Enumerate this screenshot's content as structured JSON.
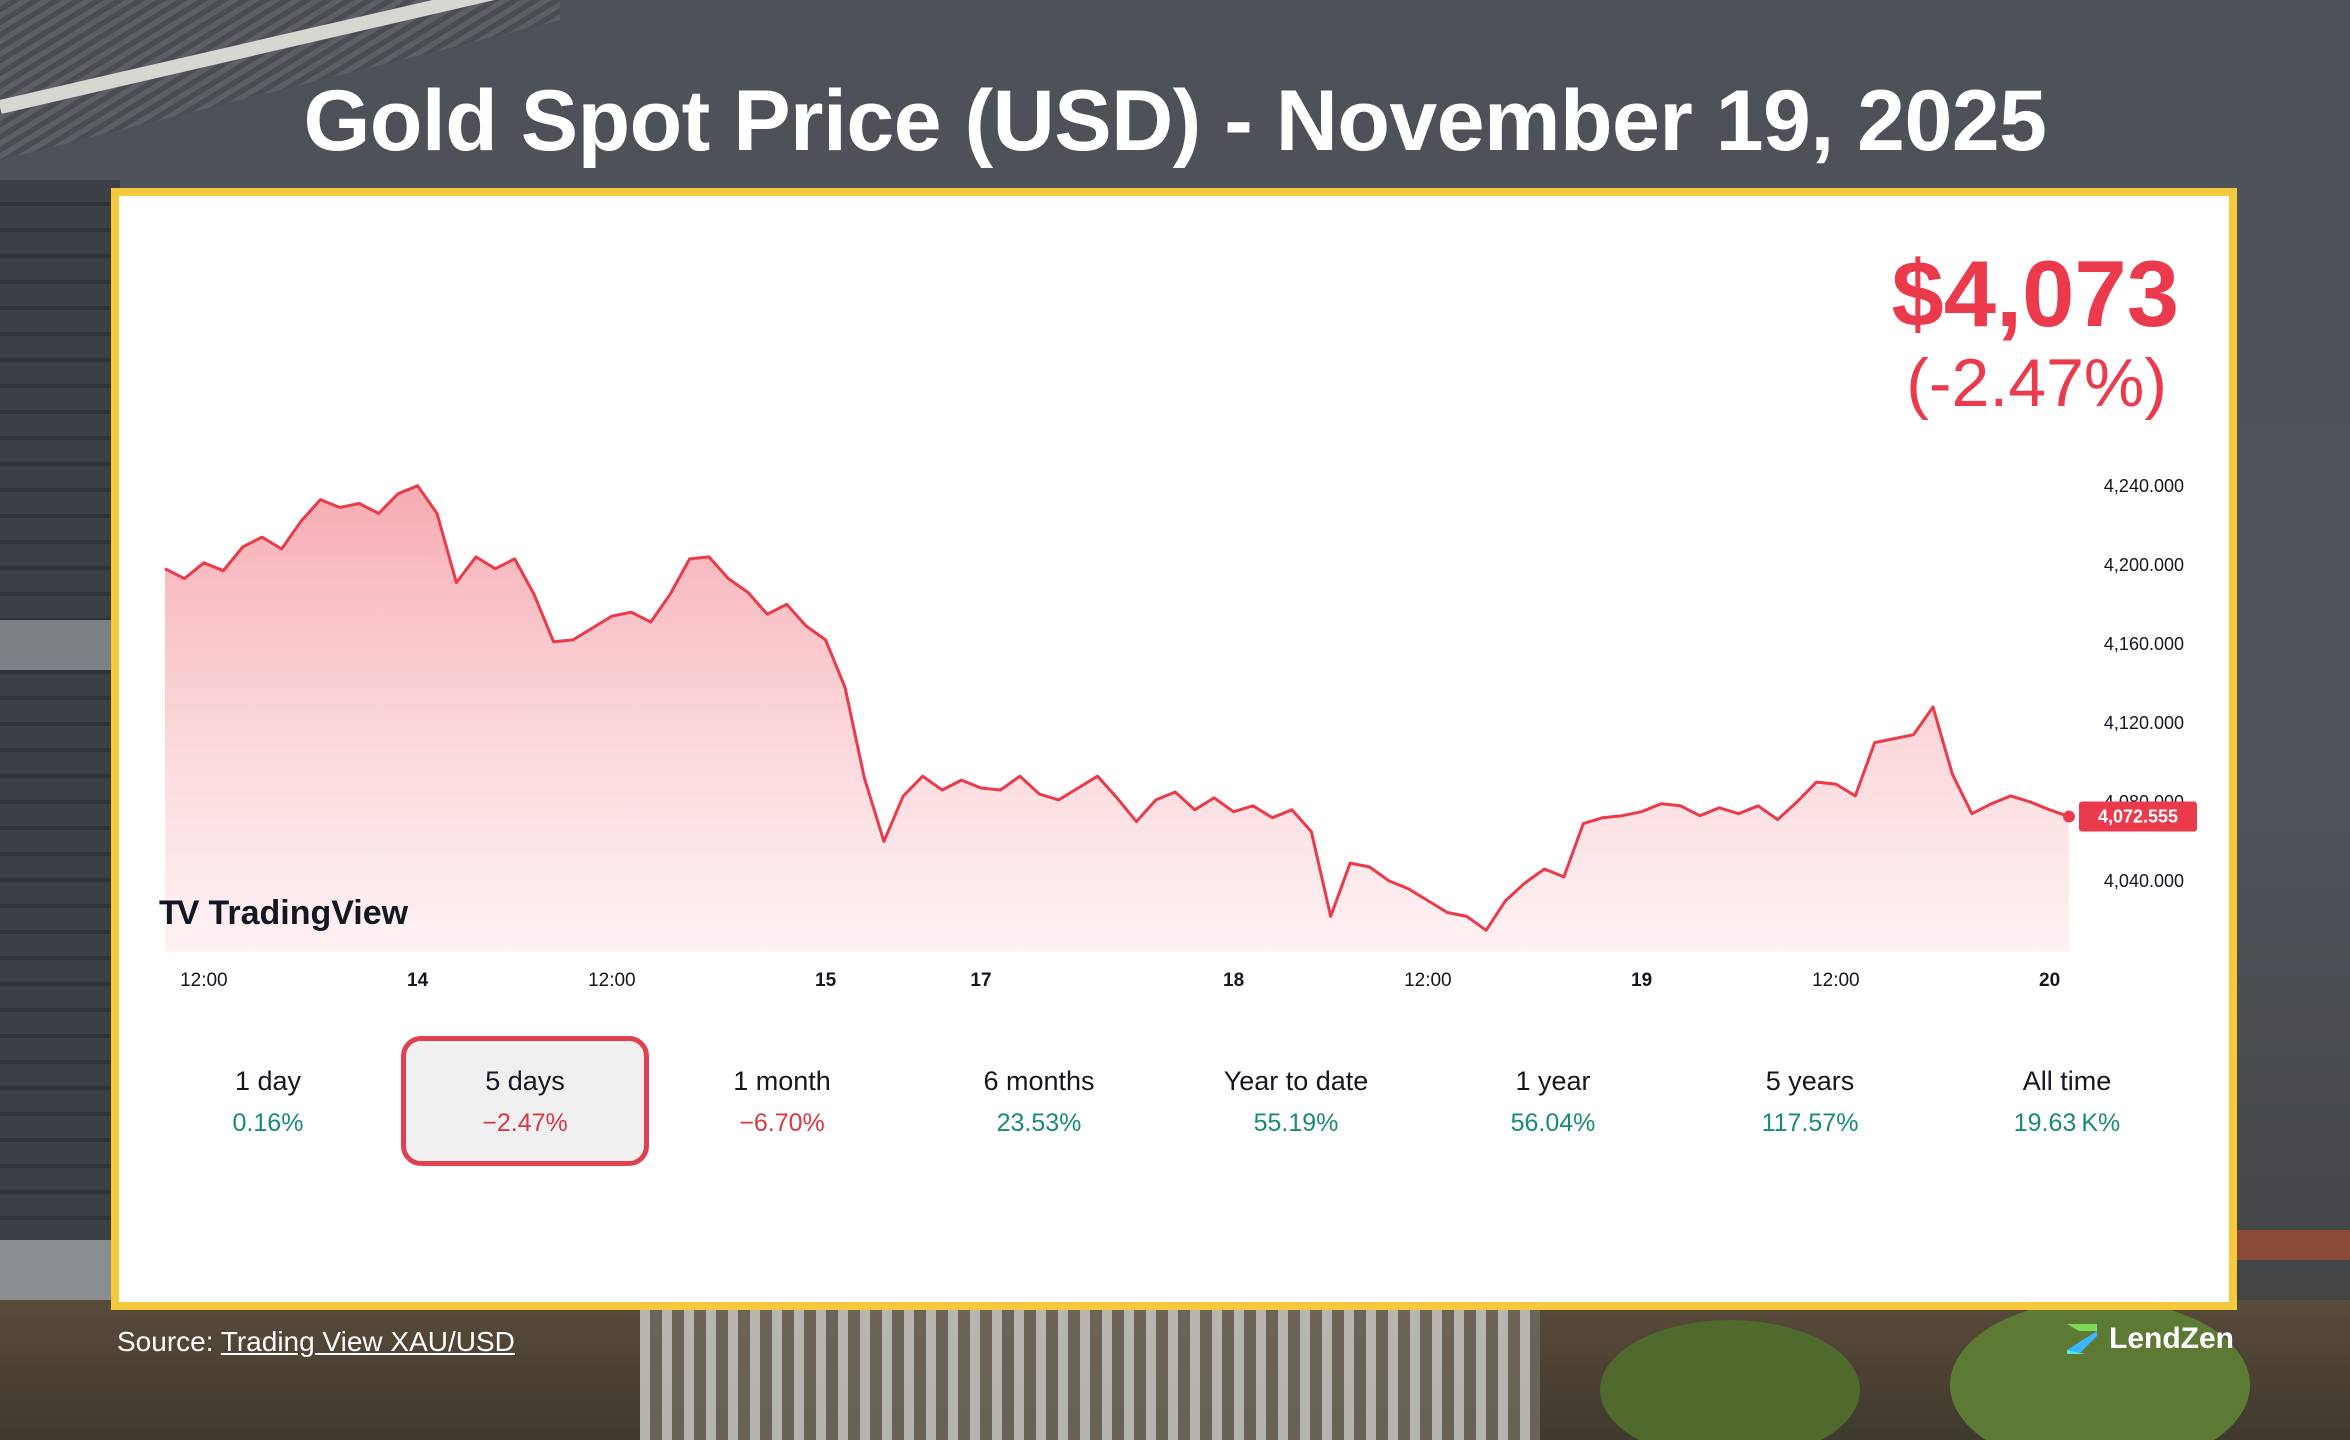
{
  "title": "Gold Spot Price (USD) - November 19, 2025",
  "price": {
    "value": "$4,073",
    "change": "(-2.47%)"
  },
  "logo_text": "TradingView",
  "source": {
    "prefix": "Source:",
    "link": "Trading View XAU/USD"
  },
  "brand": {
    "name": "LendZen"
  },
  "colors": {
    "accent": "#ea3a4b",
    "frame": "#f4c93d",
    "positive": "#1a8a78",
    "negative": "#d63a45"
  },
  "periods": [
    {
      "label": "1 day",
      "value": "0.16%",
      "trend": "pos",
      "selected": false
    },
    {
      "label": "5 days",
      "value": "−2.47%",
      "trend": "neg",
      "selected": true
    },
    {
      "label": "1 month",
      "value": "−6.70%",
      "trend": "neg",
      "selected": false
    },
    {
      "label": "6 months",
      "value": "23.53%",
      "trend": "pos",
      "selected": false
    },
    {
      "label": "Year to date",
      "value": "55.19%",
      "trend": "pos",
      "selected": false
    },
    {
      "label": "1 year",
      "value": "56.04%",
      "trend": "pos",
      "selected": false
    },
    {
      "label": "5 years",
      "value": "117.57%",
      "trend": "pos",
      "selected": false
    },
    {
      "label": "All time",
      "value": "19.63 K%",
      "trend": "pos",
      "selected": false
    }
  ],
  "chart_data": {
    "type": "area",
    "ylim": [
      4004,
      4250
    ],
    "y_ticks": [
      "4,240.000",
      "4,200.000",
      "4,160.000",
      "4,120.000",
      "4,080.000",
      "4,040.000"
    ],
    "y_tick_values": [
      4240,
      4200,
      4160,
      4120,
      4080,
      4040
    ],
    "x_ticks": [
      "12:00",
      "14",
      "12:00",
      "15",
      "17",
      "18",
      "12:00",
      "19",
      "12:00",
      "20"
    ],
    "x_tick_index": [
      2,
      13,
      23,
      34,
      42,
      55,
      65,
      76,
      86,
      97
    ],
    "last_price_label": "4,072.555",
    "color": "#ea3a4b",
    "values": [
      4198,
      4193,
      4201,
      4197,
      4209,
      4214,
      4208,
      4222,
      4233,
      4229,
      4231,
      4226,
      4236,
      4240,
      4226,
      4191,
      4204,
      4198,
      4203,
      4185,
      4161,
      4162,
      4168,
      4174,
      4176,
      4171,
      4185,
      4203,
      4204,
      4193,
      4186,
      4175,
      4180,
      4169,
      4162,
      4138,
      4092,
      4060,
      4083,
      4093,
      4086,
      4091,
      4087,
      4086,
      4093,
      4084,
      4081,
      4087,
      4093,
      4082,
      4070,
      4081,
      4085,
      4076,
      4082,
      4075,
      4078,
      4072,
      4076,
      4065,
      4022,
      4049,
      4047,
      4040,
      4036,
      4030,
      4024,
      4022,
      4015,
      4030,
      4039,
      4046,
      4042,
      4069,
      4072,
      4073,
      4075,
      4079,
      4078,
      4073,
      4077,
      4074,
      4078,
      4071,
      4080,
      4090,
      4089,
      4083,
      4110,
      4112,
      4114,
      4128,
      4094,
      4074,
      4079,
      4083,
      4080,
      4076,
      4072.555
    ]
  }
}
